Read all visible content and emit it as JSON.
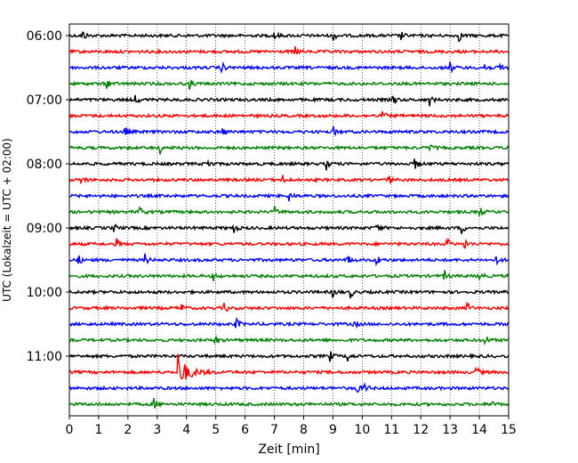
{
  "chart_data": {
    "type": "line",
    "title": "",
    "xlabel": "Zeit  [min]",
    "ylabel": "UTC (Lokalzeit = UTC + 02:00)",
    "xlim": [
      0,
      15
    ],
    "x_ticks": [
      0,
      1,
      2,
      3,
      4,
      5,
      6,
      7,
      8,
      9,
      10,
      11,
      12,
      13,
      14,
      15
    ],
    "x_tick_labels": [
      "0",
      "1",
      "2",
      "3",
      "4",
      "5",
      "6",
      "7",
      "8",
      "9",
      "10",
      "11",
      "12",
      "13",
      "14",
      "15"
    ],
    "y_tick_labels": [
      "06:00",
      "07:00",
      "08:00",
      "09:00",
      "10:00",
      "11:00"
    ],
    "grid": "vertical dotted lines at each minute",
    "trace_interval_minutes": 15,
    "color_cycle": [
      "#000000",
      "#ff0000",
      "#0000ff",
      "#008000"
    ],
    "series": [
      {
        "start": "06:00",
        "color": "#000000",
        "events_min": [
          0.45,
          7.0,
          9.0,
          11.3,
          13.3
        ]
      },
      {
        "start": "06:15",
        "color": "#ff0000",
        "events_min": [
          7.7
        ]
      },
      {
        "start": "06:30",
        "color": "#0000ff",
        "events_min": [
          5.2,
          13.0,
          14.2,
          14.7
        ]
      },
      {
        "start": "06:45",
        "color": "#008000",
        "events_min": [
          1.3,
          4.1
        ]
      },
      {
        "start": "07:00",
        "color": "#000000",
        "events_min": [
          2.25,
          11.05,
          12.3
        ]
      },
      {
        "start": "07:15",
        "color": "#ff0000",
        "events_min": [
          10.7
        ]
      },
      {
        "start": "07:30",
        "color": "#0000ff",
        "events_min": [
          1.9,
          5.2,
          9.0
        ]
      },
      {
        "start": "07:45",
        "color": "#008000",
        "events_min": [
          3.1,
          12.3
        ]
      },
      {
        "start": "08:00",
        "color": "#000000",
        "events_min": [
          4.75,
          8.8,
          11.8
        ]
      },
      {
        "start": "08:15",
        "color": "#ff0000",
        "events_min": [
          0.4,
          7.3,
          10.9
        ]
      },
      {
        "start": "08:30",
        "color": "#0000ff",
        "events_min": [
          7.5
        ]
      },
      {
        "start": "08:45",
        "color": "#008000",
        "events_min": [
          2.4,
          7.0,
          14.0
        ]
      },
      {
        "start": "09:00",
        "color": "#000000",
        "events_min": [
          1.5,
          5.6,
          10.5,
          13.4
        ]
      },
      {
        "start": "09:15",
        "color": "#ff0000",
        "events_min": [
          1.6,
          12.9,
          13.5
        ]
      },
      {
        "start": "09:30",
        "color": "#0000ff",
        "events_min": [
          0.3,
          2.6,
          9.5,
          10.5,
          14.6
        ]
      },
      {
        "start": "09:45",
        "color": "#008000",
        "events_min": [
          4.9,
          12.8,
          14.0
        ]
      },
      {
        "start": "10:00",
        "color": "#000000",
        "events_min": [
          9.0,
          9.6
        ]
      },
      {
        "start": "10:15",
        "color": "#ff0000",
        "events_min": [
          3.8,
          5.3,
          13.6
        ]
      },
      {
        "start": "10:30",
        "color": "#0000ff",
        "events_min": [
          5.7,
          9.7
        ]
      },
      {
        "start": "10:45",
        "color": "#008000",
        "events_min": [
          4.95,
          14.2
        ]
      },
      {
        "start": "11:00",
        "color": "#000000",
        "events_min": [
          8.9,
          9.5
        ]
      },
      {
        "start": "11:15",
        "color": "#ff0000",
        "events_min": [
          3.7,
          13.9
        ]
      },
      {
        "start": "11:30",
        "color": "#0000ff",
        "events_min": [
          9.8,
          10.1
        ]
      },
      {
        "start": "11:45",
        "color": "#008000",
        "events_min": [
          2.9,
          14.4
        ]
      }
    ]
  }
}
